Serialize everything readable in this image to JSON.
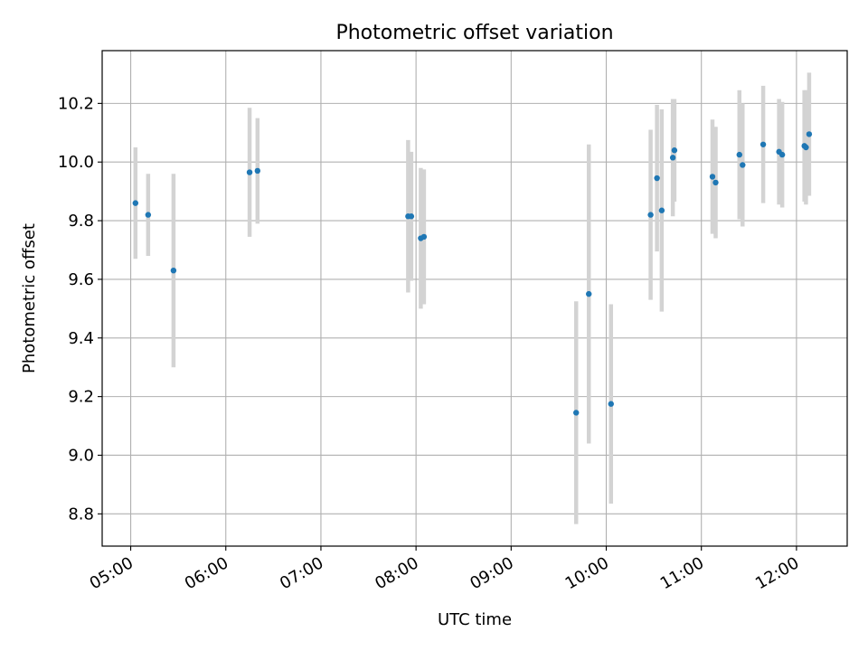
{
  "chart_data": {
    "type": "scatter",
    "title": "Photometric offset variation",
    "xlabel": "UTC time",
    "ylabel": "Photometric offset",
    "x_ticks": [
      "05:00",
      "06:00",
      "07:00",
      "08:00",
      "09:00",
      "10:00",
      "11:00",
      "12:00"
    ],
    "y_ticks": [
      "8.8",
      "9.0",
      "9.2",
      "9.4",
      "9.6",
      "9.8",
      "10.0",
      "10.2"
    ],
    "xlim": [
      "04:42",
      "12:32"
    ],
    "ylim": [
      8.69,
      10.38
    ],
    "grid": true,
    "series": [
      {
        "marker_color": "#1f77b4",
        "errorbar_color": "#d3d3d3",
        "points": [
          {
            "x": "05:03",
            "y": 9.86,
            "err": 0.19
          },
          {
            "x": "05:11",
            "y": 9.82,
            "err": 0.14
          },
          {
            "x": "05:27",
            "y": 9.63,
            "err": 0.33
          },
          {
            "x": "06:15",
            "y": 9.965,
            "err": 0.22
          },
          {
            "x": "06:20",
            "y": 9.97,
            "err": 0.18
          },
          {
            "x": "07:55",
            "y": 9.815,
            "err": 0.26
          },
          {
            "x": "07:57",
            "y": 9.815,
            "err": 0.22
          },
          {
            "x": "08:03",
            "y": 9.74,
            "err": 0.24
          },
          {
            "x": "08:05",
            "y": 9.745,
            "err": 0.23
          },
          {
            "x": "09:41",
            "y": 9.145,
            "err": 0.38
          },
          {
            "x": "09:49",
            "y": 9.55,
            "err": 0.51
          },
          {
            "x": "10:03",
            "y": 9.175,
            "err": 0.34
          },
          {
            "x": "10:28",
            "y": 9.82,
            "err": 0.29
          },
          {
            "x": "10:32",
            "y": 9.945,
            "err": 0.25
          },
          {
            "x": "10:35",
            "y": 9.835,
            "err": 0.345
          },
          {
            "x": "10:42",
            "y": 10.015,
            "err": 0.2
          },
          {
            "x": "10:43",
            "y": 10.04,
            "err": 0.175
          },
          {
            "x": "11:07",
            "y": 9.95,
            "err": 0.195
          },
          {
            "x": "11:09",
            "y": 9.93,
            "err": 0.19
          },
          {
            "x": "11:24",
            "y": 10.025,
            "err": 0.22
          },
          {
            "x": "11:26",
            "y": 9.99,
            "err": 0.21
          },
          {
            "x": "11:39",
            "y": 10.06,
            "err": 0.2
          },
          {
            "x": "11:49",
            "y": 10.035,
            "err": 0.18
          },
          {
            "x": "11:51",
            "y": 10.025,
            "err": 0.18
          },
          {
            "x": "12:05",
            "y": 10.055,
            "err": 0.19
          },
          {
            "x": "12:06",
            "y": 10.05,
            "err": 0.195
          },
          {
            "x": "12:08",
            "y": 10.095,
            "err": 0.21
          }
        ]
      }
    ]
  }
}
